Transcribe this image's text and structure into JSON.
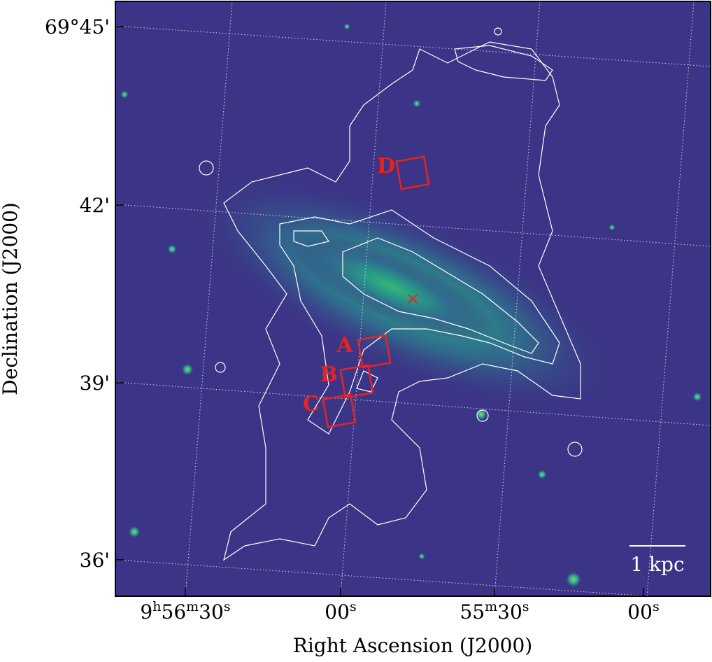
{
  "axes": {
    "x_label": "Right Ascension (J2000)",
    "y_label": "Declination (J2000)",
    "x_ticks": [
      "9h56m30s",
      "00s",
      "55m30s",
      "00s"
    ],
    "y_ticks": [
      "69°45'",
      "42'",
      "39'",
      "36'"
    ]
  },
  "regions": [
    "A",
    "B",
    "C",
    "D"
  ],
  "scale_bar": "1 kpc"
}
